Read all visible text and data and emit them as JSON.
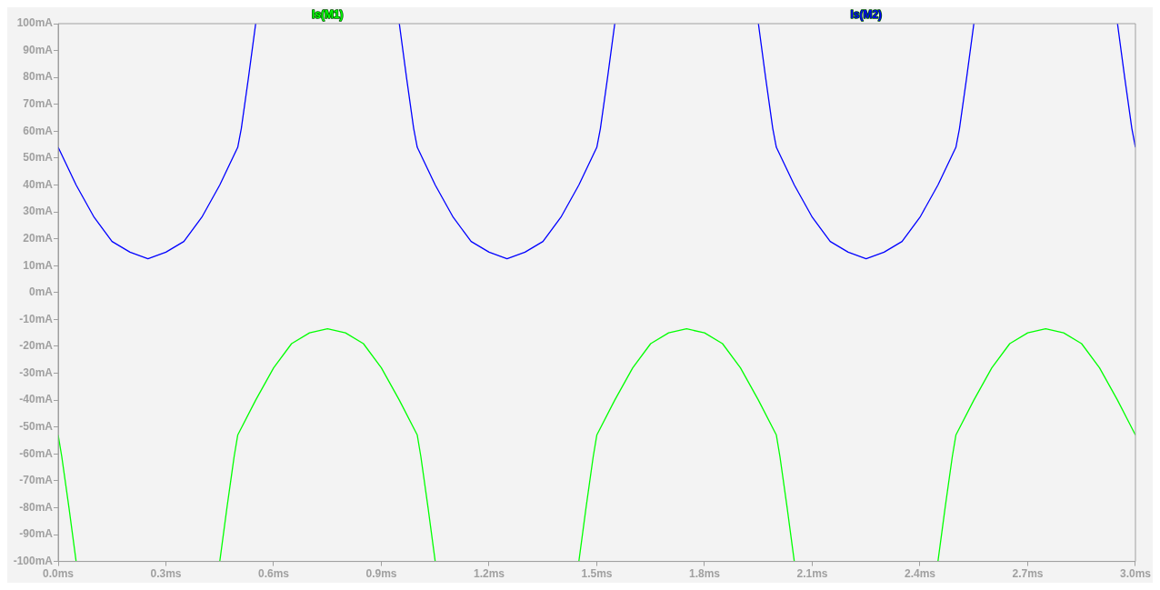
{
  "chart_data": {
    "type": "line",
    "legend": "top",
    "grid": false,
    "marker": "none",
    "line_style": "solid",
    "xlim": [
      0,
      3
    ],
    "ylim": [
      -100,
      100
    ],
    "xticks": [
      {
        "value": 0,
        "label": "0.0ms"
      },
      {
        "value": 0.3,
        "label": "0.3ms"
      },
      {
        "value": 0.6,
        "label": "0.6ms"
      },
      {
        "value": 0.9,
        "label": "0.9ms"
      },
      {
        "value": 1.2,
        "label": "1.2ms"
      },
      {
        "value": 1.5,
        "label": "1.5ms"
      },
      {
        "value": 1.8,
        "label": "1.8ms"
      },
      {
        "value": 2.1,
        "label": "2.1ms"
      },
      {
        "value": 2.4,
        "label": "2.4ms"
      },
      {
        "value": 2.7,
        "label": "2.7ms"
      },
      {
        "value": 3.0,
        "label": "3.0ms"
      }
    ],
    "yticks": [
      {
        "value": 100,
        "label": "100mA"
      },
      {
        "value": 90,
        "label": "90mA"
      },
      {
        "value": 80,
        "label": "80mA"
      },
      {
        "value": 70,
        "label": "70mA"
      },
      {
        "value": 60,
        "label": "60mA"
      },
      {
        "value": 50,
        "label": "50mA"
      },
      {
        "value": 40,
        "label": "40mA"
      },
      {
        "value": 30,
        "label": "30mA"
      },
      {
        "value": 20,
        "label": "20mA"
      },
      {
        "value": 10,
        "label": "10mA"
      },
      {
        "value": 0,
        "label": "0mA"
      },
      {
        "value": -10,
        "label": "-10mA"
      },
      {
        "value": -20,
        "label": "-20mA"
      },
      {
        "value": -30,
        "label": "-30mA"
      },
      {
        "value": -40,
        "label": "-40mA"
      },
      {
        "value": -50,
        "label": "-50mA"
      },
      {
        "value": -60,
        "label": "-60mA"
      },
      {
        "value": -70,
        "label": "-70mA"
      },
      {
        "value": -80,
        "label": "-80mA"
      },
      {
        "value": -90,
        "label": "-90mA"
      },
      {
        "value": -100,
        "label": "-100mA"
      }
    ],
    "series": [
      {
        "name": "Is(M1)",
        "color": "#00ff00",
        "x": [
          0,
          0.01,
          0.03,
          0.05,
          0.25,
          0.45,
          0.47,
          0.49,
          0.5,
          0.55,
          0.6,
          0.65,
          0.7,
          0.75,
          0.8,
          0.85,
          0.9,
          0.95,
          1.0,
          1.01,
          1.03,
          1.05,
          1.25,
          1.45,
          1.47,
          1.49,
          1.5,
          1.55,
          1.6,
          1.65,
          1.7,
          1.75,
          1.8,
          1.85,
          1.9,
          1.95,
          2.0,
          2.01,
          2.03,
          2.05,
          2.25,
          2.45,
          2.47,
          2.49,
          2.5,
          2.55,
          2.6,
          2.65,
          2.7,
          2.75,
          2.8,
          2.85,
          2.9,
          2.95,
          3.0
        ],
        "values": [
          -53,
          -61,
          -80,
          -100,
          null,
          -100,
          -80,
          -61,
          -53,
          -40,
          -28,
          -19,
          -15,
          -13.5,
          -15,
          -19,
          -28,
          -40,
          -53,
          -61,
          -80,
          -100,
          null,
          -100,
          -80,
          -61,
          -53,
          -40,
          -28,
          -19,
          -15,
          -13.5,
          -15,
          -19,
          -28,
          -40,
          -53,
          -61,
          -80,
          -100,
          null,
          -100,
          -80,
          -61,
          -53,
          -40,
          -28,
          -19,
          -15,
          -13.5,
          -15,
          -19,
          -28,
          -40,
          -53
        ]
      },
      {
        "name": "Is(M2)",
        "color": "#0000ff",
        "x": [
          0,
          0.05,
          0.1,
          0.15,
          0.2,
          0.25,
          0.3,
          0.35,
          0.4,
          0.45,
          0.5,
          0.51,
          0.53,
          0.55,
          0.75,
          0.95,
          0.97,
          0.99,
          1.0,
          1.05,
          1.1,
          1.15,
          1.2,
          1.25,
          1.3,
          1.35,
          1.4,
          1.45,
          1.5,
          1.51,
          1.53,
          1.55,
          1.75,
          1.95,
          1.97,
          1.99,
          2.0,
          2.05,
          2.1,
          2.15,
          2.2,
          2.25,
          2.3,
          2.35,
          2.4,
          2.45,
          2.5,
          2.51,
          2.53,
          2.55,
          2.75,
          2.95,
          2.97,
          2.99,
          3.0
        ],
        "values": [
          54,
          40,
          28,
          19,
          15,
          12.6,
          15,
          19,
          28,
          40,
          54,
          61,
          80,
          100,
          null,
          100,
          80,
          61,
          54,
          40,
          28,
          19,
          15,
          12.6,
          15,
          19,
          28,
          40,
          54,
          61,
          80,
          100,
          null,
          100,
          80,
          61,
          54,
          40,
          28,
          19,
          15,
          12.6,
          15,
          19,
          28,
          40,
          54,
          61,
          80,
          100,
          null,
          100,
          80,
          61,
          54
        ]
      }
    ]
  }
}
